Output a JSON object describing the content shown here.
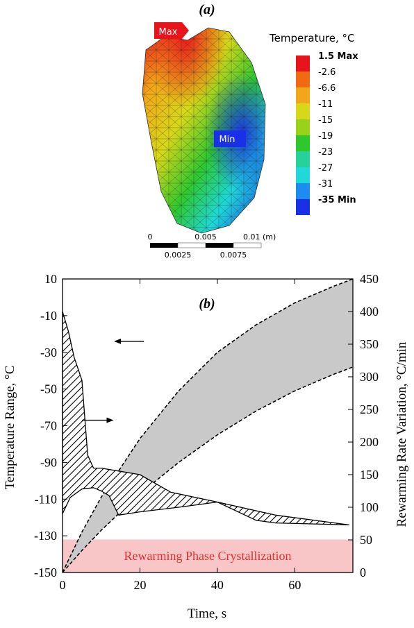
{
  "panel_a": {
    "label": "(a)",
    "max_tag": "Max",
    "min_tag": "Min",
    "legend": {
      "title": "Temperature, °C",
      "levels": [
        "1.5 Max",
        "-2.6",
        "-6.6",
        "-11",
        "-15",
        "-19",
        "-23",
        "-27",
        "-31",
        "-35 Min"
      ],
      "colors": [
        "#e8141b",
        "#f06a12",
        "#f2a71a",
        "#d8d81a",
        "#9ad21a",
        "#2ec82e",
        "#26d29a",
        "#1fd8d8",
        "#1d8cf0",
        "#1a30e6"
      ]
    },
    "scale_bar": {
      "top_labels": [
        "0",
        "0.005",
        "0.01 (m)"
      ],
      "bottom_labels": [
        "0.0025",
        "0.0075"
      ]
    }
  },
  "chart_data": {
    "type": "area",
    "label": "(b)",
    "xlabel": "Time, s",
    "ylabel_left": "Temperature Range, °C",
    "ylabel_right": "Rewarming Rate Variation, °C/min",
    "xlim": [
      0,
      75
    ],
    "ylim_left": [
      -150,
      10
    ],
    "ylim_right": [
      0,
      450
    ],
    "x_ticks": [
      0,
      20,
      40,
      60
    ],
    "y_ticks_left": [
      10,
      -10,
      -30,
      -50,
      -70,
      -90,
      -110,
      -130,
      -150
    ],
    "y_ticks_right": [
      450,
      400,
      350,
      300,
      250,
      200,
      150,
      100,
      50,
      0
    ],
    "crystallization_band": {
      "label": "Rewarming Phase Crystallization",
      "y_from": -150,
      "y_to": -132,
      "color": "#f8c6c6"
    },
    "series": [
      {
        "axis": "left",
        "style": "gray-band-dashed",
        "upper": [
          [
            0,
            -150
          ],
          [
            5,
            -128
          ],
          [
            10,
            -109
          ],
          [
            20,
            -77
          ],
          [
            30,
            -51
          ],
          [
            40,
            -30
          ],
          [
            50,
            -15
          ],
          [
            60,
            -3
          ],
          [
            70,
            6
          ],
          [
            75,
            10
          ]
        ],
        "lower": [
          [
            0,
            -150
          ],
          [
            5,
            -138
          ],
          [
            10,
            -127
          ],
          [
            20,
            -107
          ],
          [
            30,
            -90
          ],
          [
            40,
            -75
          ],
          [
            50,
            -62
          ],
          [
            60,
            -51
          ],
          [
            70,
            -42
          ],
          [
            75,
            -38
          ]
        ]
      },
      {
        "axis": "right",
        "style": "hatched",
        "upper": [
          [
            0,
            400
          ],
          [
            1.5,
            370
          ],
          [
            3,
            330
          ],
          [
            5,
            295
          ],
          [
            6.5,
            180
          ],
          [
            8,
            160
          ],
          [
            10,
            160
          ],
          [
            15,
            155
          ],
          [
            20,
            150
          ],
          [
            28,
            123
          ],
          [
            40,
            108
          ]
        ],
        "lower": [
          [
            0,
            90
          ],
          [
            2,
            115
          ],
          [
            5,
            128
          ],
          [
            8,
            130
          ],
          [
            10,
            125
          ],
          [
            12,
            118
          ],
          [
            14.5,
            88
          ],
          [
            20,
            93
          ],
          [
            30,
            100
          ],
          [
            40,
            108
          ]
        ]
      },
      {
        "axis": "right",
        "style": "hatched",
        "upper": [
          [
            40,
            108
          ],
          [
            55,
            88
          ],
          [
            74,
            73
          ]
        ],
        "lower": [
          [
            40,
            108
          ],
          [
            50,
            80
          ],
          [
            55,
            76
          ],
          [
            74,
            73
          ]
        ]
      }
    ],
    "annotations": [
      {
        "type": "arrow",
        "direction": "left",
        "from": [
          13.5,
          -24
        ],
        "to": [
          0,
          -24
        ],
        "x0": 21,
        "axis": "left"
      },
      {
        "type": "arrow",
        "direction": "right",
        "from": [
          5,
          -67
        ],
        "to": [
          13,
          -67
        ],
        "axis": "left"
      }
    ]
  }
}
